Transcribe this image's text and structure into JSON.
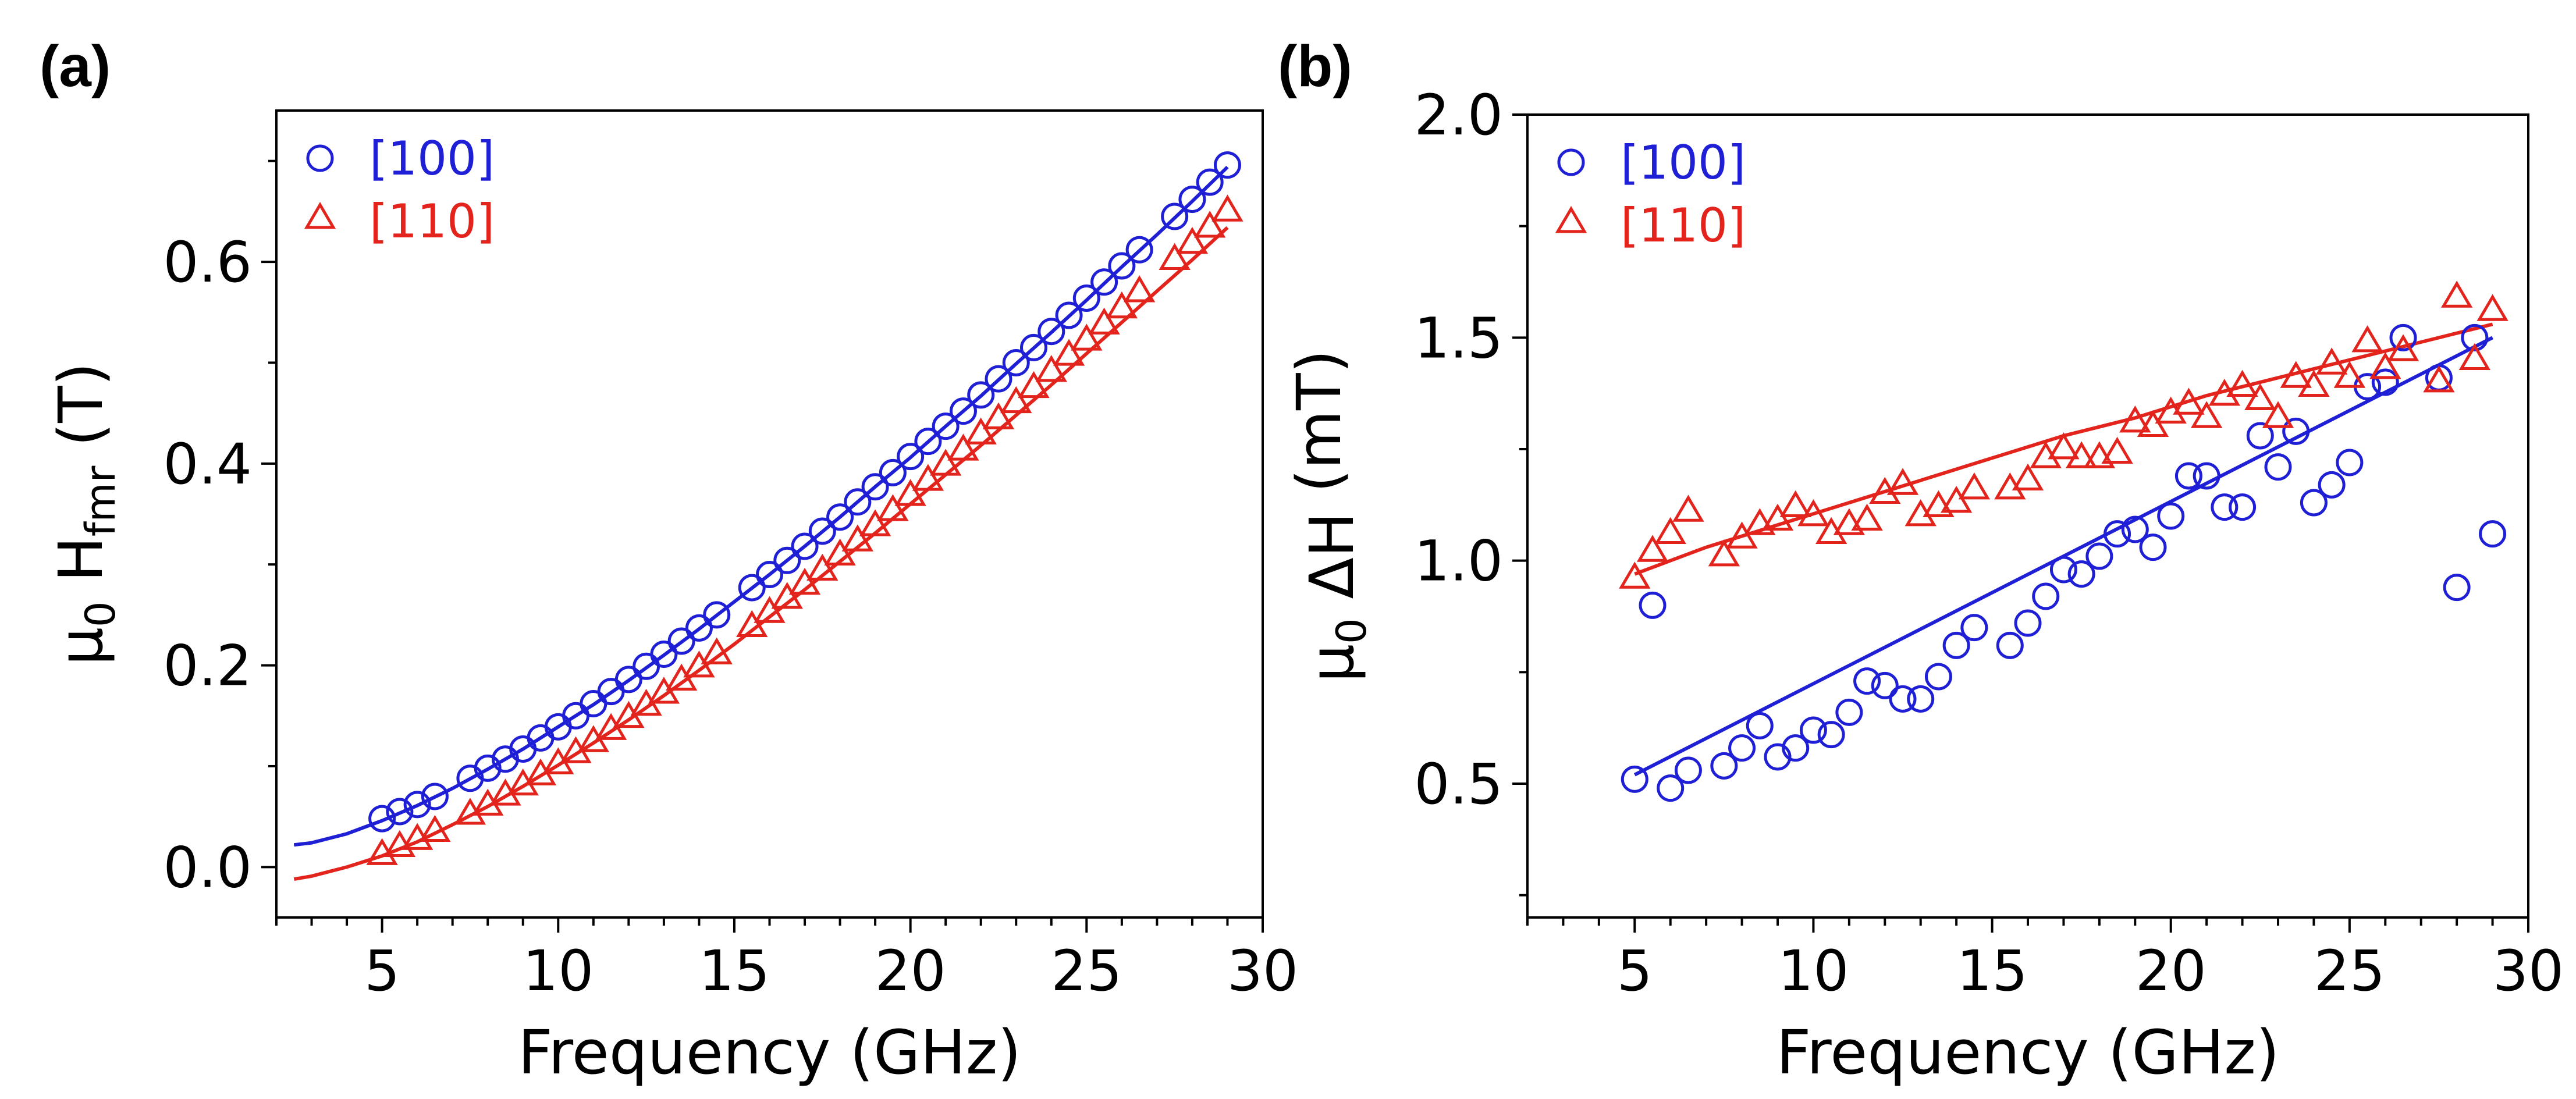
{
  "colors": {
    "series_100": "#1f1fd6",
    "series_110": "#e3241d",
    "axis": "#000000"
  },
  "chart_data": [
    {
      "panel": "(a)",
      "type": "scatter",
      "xlabel": "Frequency (GHz)",
      "ylabel": {
        "prefix": "μ",
        "sub0": "0",
        "mid": " H",
        "sub1": "fmr",
        "suffix": " (T)"
      },
      "xlim": [
        2,
        30
      ],
      "ylim": [
        -0.05,
        0.75
      ],
      "xticks": [
        5,
        10,
        15,
        20,
        25,
        30
      ],
      "xticklabels": [
        "5",
        "10",
        "15",
        "20",
        "25",
        "30"
      ],
      "yticks": [
        0.0,
        0.2,
        0.4,
        0.6
      ],
      "yticklabels": [
        "0.0",
        "0.2",
        "0.4",
        "0.6"
      ],
      "legend": "top-left",
      "series": [
        {
          "name": "[100]",
          "marker": "circle",
          "color": "#1f1fd6",
          "x": [
            5,
            5.5,
            6,
            6.5,
            7.5,
            8,
            8.5,
            9,
            9.5,
            10,
            10.5,
            11,
            11.5,
            12,
            12.5,
            13,
            13.5,
            14,
            14.5,
            15.5,
            16,
            16.5,
            17,
            17.5,
            18,
            18.5,
            19,
            19.5,
            20,
            20.5,
            21,
            21.5,
            22,
            22.5,
            23,
            23.5,
            24,
            24.5,
            25,
            25.5,
            26,
            26.5,
            27.5,
            28,
            28.5,
            29
          ],
          "y": [
            0.048,
            0.055,
            0.062,
            0.07,
            0.088,
            0.098,
            0.107,
            0.117,
            0.128,
            0.139,
            0.15,
            0.162,
            0.174,
            0.186,
            0.199,
            0.211,
            0.224,
            0.237,
            0.25,
            0.277,
            0.29,
            0.304,
            0.318,
            0.333,
            0.347,
            0.362,
            0.377,
            0.391,
            0.407,
            0.422,
            0.437,
            0.452,
            0.468,
            0.484,
            0.5,
            0.515,
            0.531,
            0.547,
            0.564,
            0.58,
            0.596,
            0.612,
            0.645,
            0.662,
            0.679,
            0.696
          ],
          "fit_x": [
            2.5,
            3,
            4,
            5,
            6,
            7,
            8,
            9,
            10,
            11,
            12,
            13,
            14,
            15,
            16,
            17,
            18,
            19,
            20,
            21,
            22,
            23,
            24,
            25,
            26,
            27,
            28,
            29
          ],
          "fit_y": [
            0.022,
            0.024,
            0.033,
            0.046,
            0.061,
            0.078,
            0.097,
            0.117,
            0.139,
            0.161,
            0.185,
            0.21,
            0.236,
            0.263,
            0.29,
            0.318,
            0.347,
            0.377,
            0.406,
            0.437,
            0.467,
            0.499,
            0.53,
            0.562,
            0.595,
            0.627,
            0.66,
            0.694
          ]
        },
        {
          "name": "[110]",
          "marker": "triangle",
          "color": "#e3241d",
          "x": [
            5,
            5.5,
            6,
            6.5,
            7.5,
            8,
            8.5,
            9,
            9.5,
            10,
            10.5,
            11,
            11.5,
            12,
            12.5,
            13,
            13.5,
            14,
            14.5,
            15.5,
            16,
            16.5,
            17,
            17.5,
            18,
            18.5,
            19,
            19.5,
            20,
            20.5,
            21,
            21.5,
            22,
            22.5,
            23,
            23.5,
            24,
            24.5,
            25,
            25.5,
            26,
            26.5,
            27.5,
            28,
            28.5,
            29
          ],
          "y": [
            0.012,
            0.02,
            0.027,
            0.035,
            0.052,
            0.061,
            0.071,
            0.081,
            0.091,
            0.102,
            0.113,
            0.124,
            0.136,
            0.148,
            0.16,
            0.172,
            0.185,
            0.198,
            0.211,
            0.238,
            0.252,
            0.266,
            0.28,
            0.294,
            0.309,
            0.323,
            0.338,
            0.353,
            0.368,
            0.383,
            0.398,
            0.413,
            0.429,
            0.444,
            0.46,
            0.475,
            0.491,
            0.507,
            0.522,
            0.538,
            0.554,
            0.57,
            0.602,
            0.618,
            0.634,
            0.65
          ],
          "fit_x": [
            2.5,
            3,
            4,
            5,
            6,
            7,
            8,
            9,
            10,
            11,
            12,
            13,
            14,
            15,
            16,
            17,
            18,
            19,
            20,
            21,
            22,
            23,
            24,
            25,
            26,
            27,
            28,
            29
          ],
          "fit_y": [
            -0.012,
            -0.009,
            0.0,
            0.011,
            0.025,
            0.042,
            0.06,
            0.08,
            0.101,
            0.123,
            0.146,
            0.17,
            0.195,
            0.221,
            0.248,
            0.275,
            0.303,
            0.331,
            0.36,
            0.389,
            0.418,
            0.448,
            0.478,
            0.509,
            0.54,
            0.571,
            0.602,
            0.634
          ]
        }
      ]
    },
    {
      "panel": "(b)",
      "type": "scatter",
      "xlabel": "Frequency (GHz)",
      "ylabel": {
        "prefix": "μ",
        "sub0": "0",
        "mid": " ΔH",
        "sub1": "",
        "suffix": " (mT)"
      },
      "xlim": [
        2,
        30
      ],
      "ylim": [
        0.2,
        2.0
      ],
      "xticks": [
        5,
        10,
        15,
        20,
        25,
        30
      ],
      "xticklabels": [
        "5",
        "10",
        "15",
        "20",
        "25",
        "30"
      ],
      "yticks": [
        0.5,
        1.0,
        1.5,
        2.0
      ],
      "yticklabels": [
        "0.5",
        "1.0",
        "1.5",
        "2.0"
      ],
      "legend": "top-left",
      "series": [
        {
          "name": "[100]",
          "marker": "circle",
          "color": "#1f1fd6",
          "x": [
            5,
            5.5,
            6,
            6.5,
            7.5,
            8,
            8.5,
            9,
            9.5,
            10,
            10.5,
            11,
            11.5,
            12,
            12.5,
            13,
            13.5,
            14,
            14.5,
            15.5,
            16,
            16.5,
            17,
            17.5,
            18,
            18.5,
            19,
            19.5,
            20,
            20.5,
            21,
            21.5,
            22,
            22.5,
            23,
            23.5,
            24,
            24.5,
            25,
            25.5,
            26,
            26.5,
            27.5,
            28,
            28.5,
            29
          ],
          "y": [
            0.51,
            0.9,
            0.49,
            0.53,
            0.54,
            0.58,
            0.63,
            0.56,
            0.58,
            0.62,
            0.61,
            0.66,
            0.73,
            0.72,
            0.69,
            0.69,
            0.74,
            0.81,
            0.85,
            0.81,
            0.86,
            0.92,
            0.98,
            0.97,
            1.01,
            1.06,
            1.07,
            1.03,
            1.1,
            1.19,
            1.19,
            1.12,
            1.12,
            1.28,
            1.21,
            1.29,
            1.13,
            1.17,
            1.22,
            1.39,
            1.4,
            1.5,
            1.41,
            0.94,
            1.5,
            1.06
          ],
          "fit_x": [
            5,
            29
          ],
          "fit_y": [
            0.52,
            1.5
          ]
        },
        {
          "name": "[110]",
          "marker": "triangle",
          "color": "#e3241d",
          "x": [
            5,
            5.5,
            6,
            6.5,
            7.5,
            8,
            8.5,
            9,
            9.5,
            10,
            10.5,
            11,
            11.5,
            12,
            12.5,
            13,
            13.5,
            14,
            14.5,
            15.5,
            16,
            16.5,
            17,
            17.5,
            18,
            18.5,
            19,
            19.5,
            20,
            20.5,
            21,
            21.5,
            22,
            22.5,
            23,
            23.5,
            24,
            24.5,
            25,
            25.5,
            26,
            26.5,
            27.5,
            28,
            28.5,
            29
          ],
          "y": [
            0.96,
            1.02,
            1.06,
            1.11,
            1.01,
            1.05,
            1.08,
            1.09,
            1.12,
            1.1,
            1.06,
            1.08,
            1.09,
            1.15,
            1.17,
            1.1,
            1.12,
            1.13,
            1.16,
            1.16,
            1.18,
            1.23,
            1.25,
            1.23,
            1.23,
            1.24,
            1.31,
            1.3,
            1.33,
            1.35,
            1.32,
            1.37,
            1.39,
            1.36,
            1.32,
            1.41,
            1.39,
            1.44,
            1.41,
            1.49,
            1.43,
            1.47,
            1.4,
            1.59,
            1.45,
            1.56
          ],
          "fit_x": [
            5,
            7,
            9,
            11,
            13,
            15,
            17,
            19,
            21,
            23,
            25,
            27,
            29
          ],
          "fit_y": [
            0.97,
            1.03,
            1.08,
            1.13,
            1.18,
            1.23,
            1.28,
            1.32,
            1.37,
            1.41,
            1.45,
            1.49,
            1.53
          ]
        }
      ]
    }
  ]
}
